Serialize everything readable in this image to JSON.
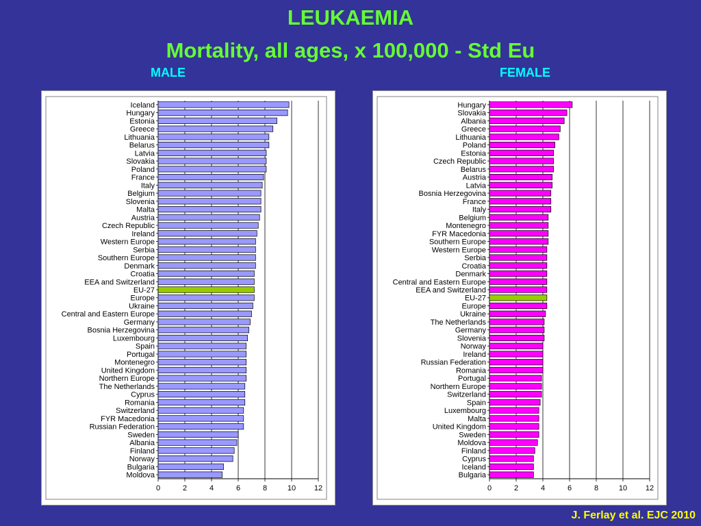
{
  "title": "LEUKAEMIA",
  "subtitle": "Mortality, all ages, x 100,000 - Std Eu",
  "source": "J. Ferlay et al. EJC 2010",
  "colors": {
    "background": "#333399",
    "title": "#66ff33",
    "panel_label": "#00ffff",
    "source": "#ffff00"
  },
  "chart_data": [
    {
      "type": "bar",
      "orientation": "horizontal",
      "title": "MALE",
      "bar_color": "#9999ff",
      "highlight": "EU-27",
      "highlight_color": "#99cc00",
      "xlim": [
        0,
        12
      ],
      "xticks": [
        0,
        2,
        4,
        6,
        8,
        10,
        12
      ],
      "grid": true,
      "categories": [
        "Iceland",
        "Hungary",
        "Estonia",
        "Greece",
        "Lithuania",
        "Belarus",
        "Latvia",
        "Slovakia",
        "Poland",
        "France",
        "Italy",
        "Belgium",
        "Slovenia",
        "Malta",
        "Austria",
        "Czech Republic",
        "Ireland",
        "Western Europe",
        "Serbia",
        "Southern Europe",
        "Denmark",
        "Croatia",
        "EEA and Switzerland",
        "EU-27",
        "Europe",
        "Ukraine",
        "Central and Eastern Europe",
        "Germany",
        "Bosnia Herzegovina",
        "Luxembourg",
        "Spain",
        "Portugal",
        "Montenegro",
        "United Kingdom",
        "Northern Europe",
        "The Netherlands",
        "Cyprus",
        "Romania",
        "Switzerland",
        "FYR Macedonia",
        "Russian Federation",
        "Sweden",
        "Albania",
        "Finland",
        "Norway",
        "Bulgaria",
        "Moldova"
      ],
      "values": [
        9.8,
        9.7,
        8.9,
        8.6,
        8.3,
        8.3,
        8.1,
        8.1,
        8.1,
        7.9,
        7.8,
        7.7,
        7.7,
        7.7,
        7.6,
        7.5,
        7.4,
        7.3,
        7.3,
        7.3,
        7.3,
        7.2,
        7.2,
        7.2,
        7.2,
        7.1,
        7.0,
        6.9,
        6.8,
        6.7,
        6.6,
        6.6,
        6.6,
        6.6,
        6.6,
        6.5,
        6.5,
        6.5,
        6.4,
        6.4,
        6.4,
        6.0,
        5.9,
        5.7,
        5.6,
        4.9,
        4.8
      ]
    },
    {
      "type": "bar",
      "orientation": "horizontal",
      "title": "FEMALE",
      "bar_color": "#ff00ff",
      "highlight": "EU-27",
      "highlight_color": "#99cc00",
      "xlim": [
        0,
        12
      ],
      "xticks": [
        0,
        2,
        4,
        6,
        8,
        10,
        12
      ],
      "grid": true,
      "categories": [
        "Hungary",
        "Slovakia",
        "Albania",
        "Greece",
        "Lithuania",
        "Poland",
        "Estonia",
        "Czech Republic",
        "Belarus",
        "Austria",
        "Latvia",
        "Bosnia Herzegovina",
        "France",
        "Italy",
        "Belgium",
        "Montenegro",
        "FYR Macedonia",
        "Southern Europe",
        "Western Europe",
        "Serbia",
        "Croatia",
        "Denmark",
        "Central and Eastern Europe",
        "EEA and Switzerland",
        "EU-27",
        "Europe",
        "Ukraine",
        "The Netherlands",
        "Germany",
        "Slovenia",
        "Norway",
        "Ireland",
        "Russian Federation",
        "Romania",
        "Portugal",
        "Northern Europe",
        "Switzerland",
        "Spain",
        "Luxembourg",
        "Malta",
        "United Kingdom",
        "Sweden",
        "Moldova",
        "Finland",
        "Cyprus",
        "Iceland",
        "Bulgaria"
      ],
      "values": [
        6.2,
        5.8,
        5.6,
        5.3,
        5.2,
        4.9,
        4.8,
        4.8,
        4.8,
        4.7,
        4.7,
        4.6,
        4.6,
        4.6,
        4.4,
        4.4,
        4.4,
        4.4,
        4.3,
        4.3,
        4.3,
        4.3,
        4.3,
        4.3,
        4.3,
        4.3,
        4.2,
        4.1,
        4.1,
        4.1,
        4.0,
        4.0,
        4.0,
        4.0,
        3.9,
        3.9,
        3.9,
        3.8,
        3.7,
        3.7,
        3.7,
        3.7,
        3.6,
        3.4,
        3.3,
        3.3,
        3.3
      ]
    }
  ]
}
